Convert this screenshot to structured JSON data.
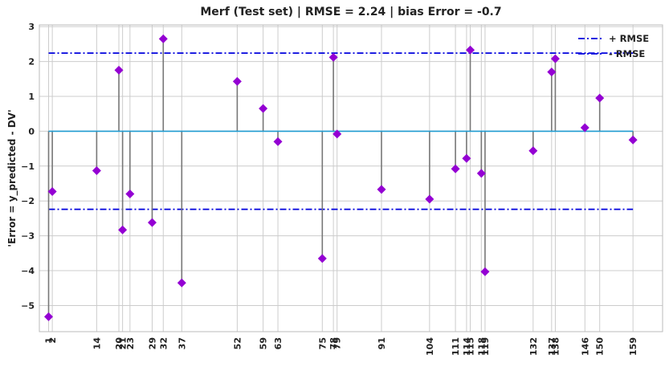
{
  "chart_data": {
    "type": "stem",
    "title": "Merf (Test set) | RMSE = 2.24 | bias Error = -0.7",
    "xlabel": "",
    "ylabel": "'Error = y_predicted - DV'",
    "rmse": 2.24,
    "bias": -0.7,
    "xlim": [
      -1.5,
      167
    ],
    "ylim": [
      -5.75,
      3.05
    ],
    "yticks": [
      -5,
      -4,
      -3,
      -2,
      -1,
      0,
      1,
      2,
      3
    ],
    "grid": true,
    "legend_position": "top-right",
    "legend": [
      {
        "label": "+ RMSE",
        "color": "#0000dd",
        "style": "dash-dot"
      },
      {
        "label": "- RMSE",
        "color": "#0000dd",
        "style": "dash-dot"
      }
    ],
    "colors": {
      "stem": "#777777",
      "marker": "#9400d3",
      "baseline": "#1f9bd1",
      "rmse_line": "#0000dd",
      "grid": "#cccccc"
    },
    "points": [
      {
        "x": 1,
        "y": -5.32
      },
      {
        "x": 2,
        "y": -1.73
      },
      {
        "x": 14,
        "y": -1.13
      },
      {
        "x": 20,
        "y": 1.75
      },
      {
        "x": 21,
        "y": -2.83
      },
      {
        "x": 23,
        "y": -1.8
      },
      {
        "x": 29,
        "y": -2.62
      },
      {
        "x": 32,
        "y": 2.65
      },
      {
        "x": 37,
        "y": -4.35
      },
      {
        "x": 52,
        "y": 1.43
      },
      {
        "x": 59,
        "y": 0.65
      },
      {
        "x": 63,
        "y": -0.3
      },
      {
        "x": 75,
        "y": -3.65
      },
      {
        "x": 78,
        "y": 2.12
      },
      {
        "x": 79,
        "y": -0.08
      },
      {
        "x": 91,
        "y": -1.67
      },
      {
        "x": 104,
        "y": -1.95
      },
      {
        "x": 111,
        "y": -1.08
      },
      {
        "x": 114,
        "y": -0.78
      },
      {
        "x": 115,
        "y": 2.33
      },
      {
        "x": 118,
        "y": -1.21
      },
      {
        "x": 119,
        "y": -4.03
      },
      {
        "x": 132,
        "y": -0.56
      },
      {
        "x": 137,
        "y": 1.7
      },
      {
        "x": 138,
        "y": 2.08
      },
      {
        "x": 146,
        "y": 0.1
      },
      {
        "x": 150,
        "y": 0.95
      },
      {
        "x": 159,
        "y": -0.25
      }
    ]
  }
}
